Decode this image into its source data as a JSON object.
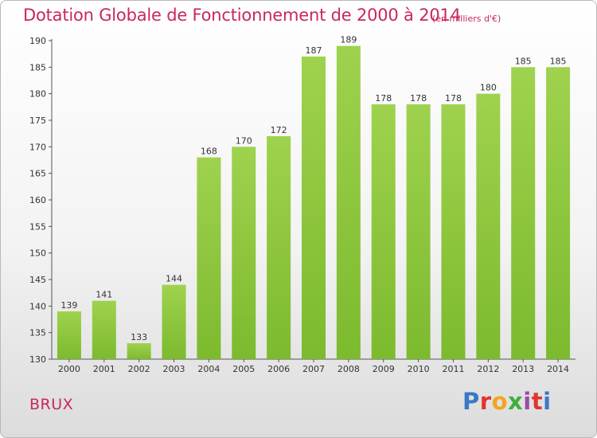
{
  "page": {
    "commune": "BRUX",
    "logo": {
      "text": "Proxiti",
      "colors": [
        "#3a78c8",
        "#e2342f",
        "#f2a41f",
        "#3fae3c",
        "#9b4aa8",
        "#e2342f",
        "#3a78c8"
      ]
    }
  },
  "chart_data": {
    "type": "bar",
    "title": "Dotation Globale de Fonctionnement de 2000 à 2014",
    "subtitle": "(en milliers d'€)",
    "xlabel": "",
    "ylabel": "",
    "categories": [
      "2000",
      "2001",
      "2002",
      "2003",
      "2004",
      "2005",
      "2006",
      "2007",
      "2008",
      "2009",
      "2010",
      "2011",
      "2012",
      "2013",
      "2014"
    ],
    "values": [
      139,
      141,
      133,
      144,
      168,
      170,
      172,
      187,
      189,
      178,
      178,
      178,
      180,
      185,
      185
    ],
    "ylim": [
      130,
      190
    ],
    "yticks": [
      130,
      135,
      140,
      145,
      150,
      155,
      160,
      165,
      170,
      175,
      180,
      185,
      190
    ],
    "grid": false,
    "bar_color": "#7cba2e",
    "bar_color_light": "#9fd24e"
  }
}
